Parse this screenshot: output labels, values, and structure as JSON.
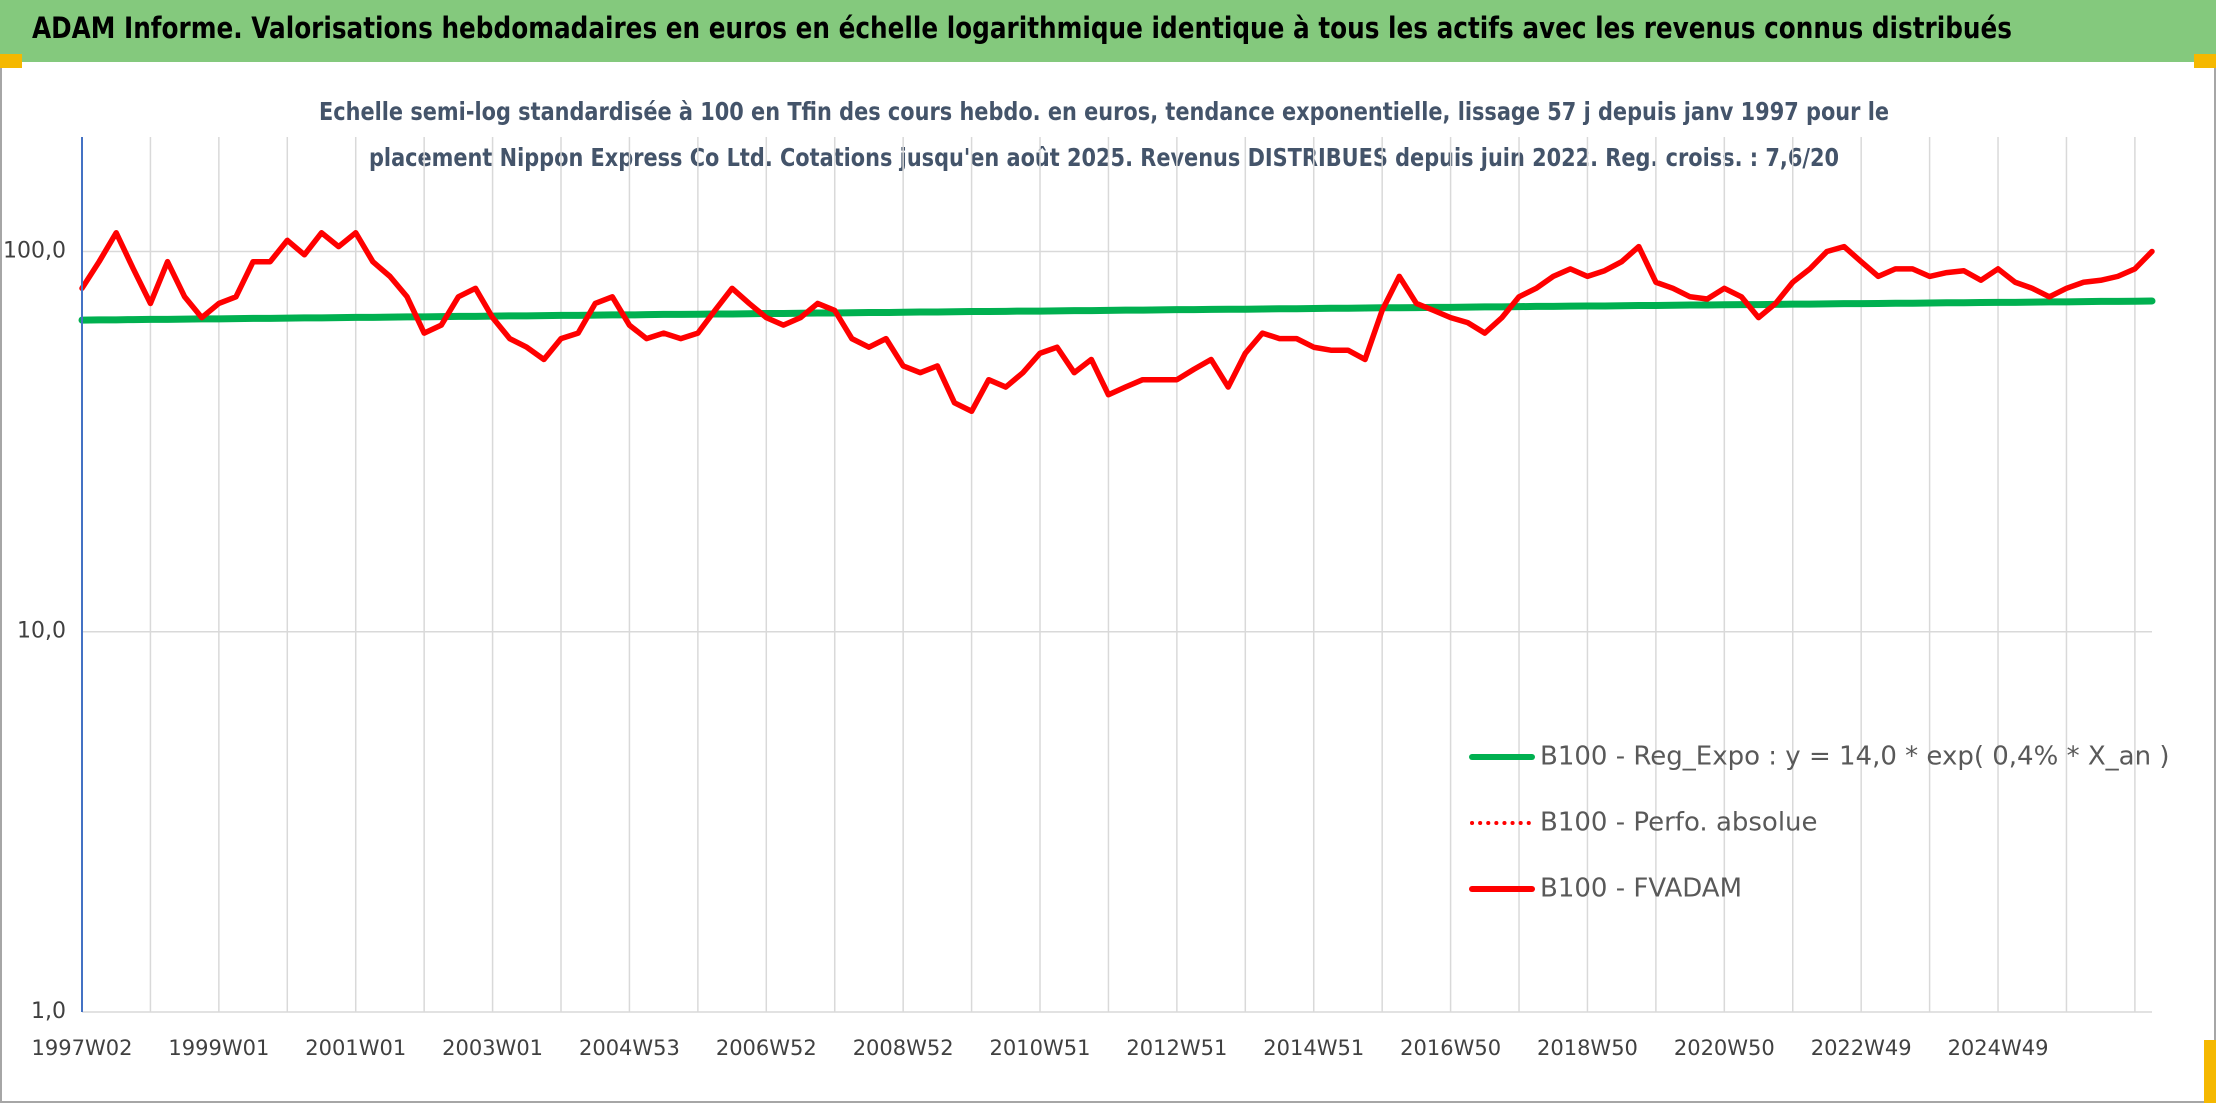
{
  "chart_data": {
    "type": "line",
    "title": "ADAM Informe. Valorisations hebdomadaires en euros en échelle logarithmique identique à tous les actifs avec les revenus connus distribués",
    "subtitle": [
      "Echelle semi-log standardisée à 100 en Tfin des cours hebdo. en euros, tendance exponentielle, lissage 57 j depuis janv 1997 pour le",
      "placement Nippon Express Co Ltd. Cotations jusqu'en août 2025. Revenus DISTRIBUES depuis juin 2022. Reg. croiss. : 7,6/20"
    ],
    "log_scale": true,
    "grid": true,
    "legend": "lower-right",
    "ylim": [
      1,
      200
    ],
    "yticks": [
      {
        "value": 1,
        "label": "1,0"
      },
      {
        "value": 10,
        "label": "10,0"
      },
      {
        "value": 100,
        "label": "100,0"
      }
    ],
    "categories": [
      "1997W02",
      null,
      null,
      null,
      null,
      null,
      null,
      null,
      "1999W01",
      null,
      null,
      null,
      null,
      null,
      null,
      null,
      "2001W01",
      null,
      null,
      null,
      null,
      null,
      null,
      null,
      "2003W01",
      null,
      null,
      null,
      null,
      null,
      null,
      null,
      "2004W53",
      null,
      null,
      null,
      null,
      null,
      null,
      null,
      "2006W52",
      null,
      null,
      null,
      null,
      null,
      null,
      null,
      "2008W52",
      null,
      null,
      null,
      null,
      null,
      null,
      null,
      "2010W51",
      null,
      null,
      null,
      null,
      null,
      null,
      null,
      "2012W51",
      null,
      null,
      null,
      null,
      null,
      null,
      null,
      "2014W51",
      null,
      null,
      null,
      null,
      null,
      null,
      null,
      "2016W50",
      null,
      null,
      null,
      null,
      null,
      null,
      null,
      "2018W50",
      null,
      null,
      null,
      null,
      null,
      null,
      null,
      "2020W50",
      null,
      null,
      null,
      null,
      null,
      null,
      null,
      "2022W49",
      null,
      null,
      null,
      null,
      null,
      null,
      null,
      "2024W49",
      null,
      null,
      null,
      null,
      null,
      null,
      null,
      null,
      null
    ],
    "series": [
      {
        "name": "B100 - Reg_Expo : y = 14,0 * exp( 0,4% *  X_an )",
        "color": "#00b050",
        "style": "solid",
        "values": [
          66.0,
          66.1,
          66.1,
          66.2,
          66.3,
          66.3,
          66.4,
          66.5,
          66.5,
          66.6,
          66.7,
          66.7,
          66.8,
          66.9,
          66.9,
          67.0,
          67.1,
          67.1,
          67.2,
          67.3,
          67.3,
          67.4,
          67.5,
          67.5,
          67.6,
          67.7,
          67.7,
          67.8,
          67.9,
          67.9,
          68.0,
          68.1,
          68.1,
          68.2,
          68.3,
          68.3,
          68.4,
          68.5,
          68.5,
          68.6,
          68.7,
          68.7,
          68.8,
          68.9,
          68.9,
          69.0,
          69.1,
          69.1,
          69.2,
          69.3,
          69.3,
          69.4,
          69.5,
          69.5,
          69.6,
          69.7,
          69.7,
          69.8,
          69.9,
          69.9,
          70.0,
          70.1,
          70.1,
          70.2,
          70.3,
          70.3,
          70.4,
          70.5,
          70.5,
          70.6,
          70.7,
          70.7,
          70.8,
          70.9,
          70.9,
          71.0,
          71.1,
          71.1,
          71.2,
          71.3,
          71.3,
          71.4,
          71.5,
          71.5,
          71.6,
          71.7,
          71.7,
          71.8,
          71.9,
          71.9,
          72.0,
          72.1,
          72.1,
          72.2,
          72.3,
          72.3,
          72.4,
          72.5,
          72.5,
          72.6,
          72.7,
          72.7,
          72.8,
          72.9,
          72.9,
          73.0,
          73.1,
          73.1,
          73.2,
          73.3,
          73.3,
          73.4,
          73.5,
          73.5,
          73.6,
          73.7,
          73.7,
          73.8,
          73.9,
          73.9,
          74.0,
          74.1
        ]
      },
      {
        "name": "B100 - Perfo. absolue",
        "color": "#ff0000",
        "style": "dotted",
        "values": [
          80,
          94,
          112,
          90,
          73,
          94,
          76,
          67,
          73,
          76,
          94,
          94,
          107,
          98,
          112,
          103,
          112,
          94,
          86,
          76,
          61,
          64,
          76,
          80,
          67,
          59,
          56,
          52,
          59,
          61,
          73,
          76,
          64,
          59,
          61,
          59,
          61,
          70,
          80,
          73,
          67,
          64,
          67,
          73,
          70,
          59,
          56,
          59,
          50,
          48,
          50,
          40,
          38,
          46,
          44,
          48,
          54,
          56,
          48,
          52,
          42,
          44,
          46,
          46,
          46,
          49,
          52,
          44,
          54,
          61,
          59,
          59,
          56,
          55,
          55,
          52,
          70,
          86,
          73,
          70,
          67,
          65,
          61,
          67,
          76,
          80,
          86,
          90,
          86,
          89,
          94,
          103,
          83,
          80,
          76,
          75,
          80,
          76,
          67,
          73,
          83,
          90,
          100,
          103,
          94,
          86,
          90,
          90,
          86,
          88,
          89,
          84,
          90,
          83,
          80,
          76,
          80,
          83,
          84,
          86,
          90,
          100
        ]
      },
      {
        "name": "B100 - FVADAM",
        "color": "#ff0000",
        "style": "solid",
        "values": [
          80,
          94,
          112,
          90,
          73,
          94,
          76,
          67,
          73,
          76,
          94,
          94,
          107,
          98,
          112,
          103,
          112,
          94,
          86,
          76,
          61,
          64,
          76,
          80,
          67,
          59,
          56,
          52,
          59,
          61,
          73,
          76,
          64,
          59,
          61,
          59,
          61,
          70,
          80,
          73,
          67,
          64,
          67,
          73,
          70,
          59,
          56,
          59,
          50,
          48,
          50,
          40,
          38,
          46,
          44,
          48,
          54,
          56,
          48,
          52,
          42,
          44,
          46,
          46,
          46,
          49,
          52,
          44,
          54,
          61,
          59,
          59,
          56,
          55,
          55,
          52,
          70,
          86,
          73,
          70,
          67,
          65,
          61,
          67,
          76,
          80,
          86,
          90,
          86,
          89,
          94,
          103,
          83,
          80,
          76,
          75,
          80,
          76,
          67,
          73,
          83,
          90,
          100,
          103,
          94,
          86,
          90,
          90,
          86,
          88,
          89,
          84,
          90,
          83,
          80,
          76,
          80,
          83,
          84,
          86,
          90,
          100
        ]
      }
    ]
  }
}
